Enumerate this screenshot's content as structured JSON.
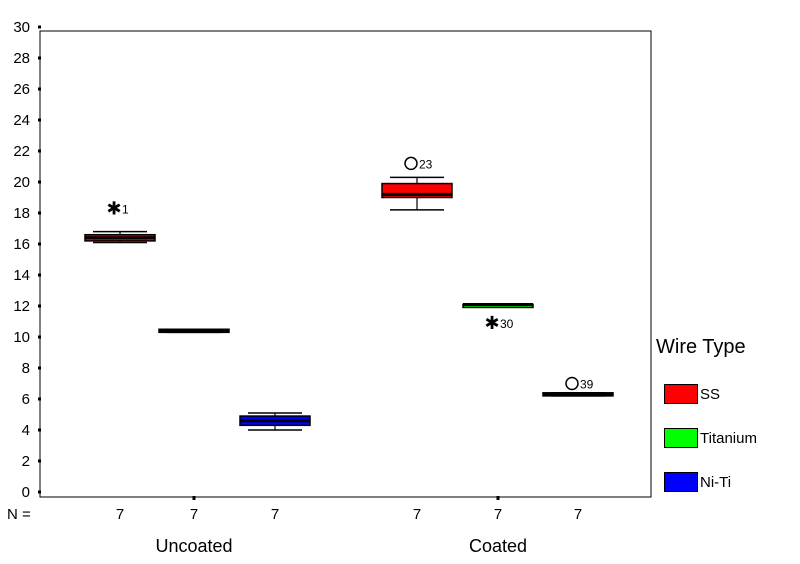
{
  "chart_data": {
    "type": "boxplot",
    "y_ticks": [
      "0",
      "2",
      "4",
      "6",
      "8",
      "10",
      "12",
      "14",
      "16",
      "18",
      "20",
      "22",
      "24",
      "26",
      "28",
      "30"
    ],
    "ylim": [
      0,
      30
    ],
    "groups": [
      "Uncoated",
      "Coated"
    ],
    "n_label": "N =",
    "legend_title": "Wire Type",
    "series": [
      {
        "name": "SS",
        "color": "#ff0000"
      },
      {
        "name": "Titanium",
        "color": "#00ff00"
      },
      {
        "name": "Ni-Ti",
        "color": "#0000ff"
      }
    ],
    "boxes": [
      {
        "group": "Uncoated",
        "series": "SS",
        "n": "7",
        "min": 16.1,
        "q1": 16.2,
        "median": 16.4,
        "q3": 16.6,
        "max": 16.8,
        "outliers": [
          {
            "value": 18.3,
            "marker": "star",
            "label": "1"
          }
        ]
      },
      {
        "group": "Uncoated",
        "series": "Titanium",
        "n": "7",
        "min": 10.3,
        "q1": 10.3,
        "median": 10.4,
        "q3": 10.5,
        "max": 10.5,
        "outliers": []
      },
      {
        "group": "Uncoated",
        "series": "Ni-Ti",
        "n": "7",
        "min": 4.0,
        "q1": 4.3,
        "median": 4.6,
        "q3": 4.9,
        "max": 5.1,
        "outliers": []
      },
      {
        "group": "Coated",
        "series": "SS",
        "n": "7",
        "min": 18.2,
        "q1": 19.0,
        "median": 19.2,
        "q3": 19.9,
        "max": 20.3,
        "outliers": [
          {
            "value": 21.2,
            "marker": "circle",
            "label": "23"
          }
        ]
      },
      {
        "group": "Coated",
        "series": "Titanium",
        "n": "7",
        "min": 12.0,
        "q1": 12.0,
        "median": 12.1,
        "q3": 12.1,
        "max": 12.1,
        "outliers": [
          {
            "value": 10.9,
            "marker": "star",
            "label": "30"
          }
        ]
      },
      {
        "group": "Coated",
        "series": "Ni-Ti",
        "n": "7",
        "min": 6.2,
        "q1": 6.2,
        "median": 6.3,
        "q3": 6.4,
        "max": 6.4,
        "outliers": [
          {
            "value": 7.0,
            "marker": "circle",
            "label": "39"
          }
        ]
      }
    ]
  }
}
